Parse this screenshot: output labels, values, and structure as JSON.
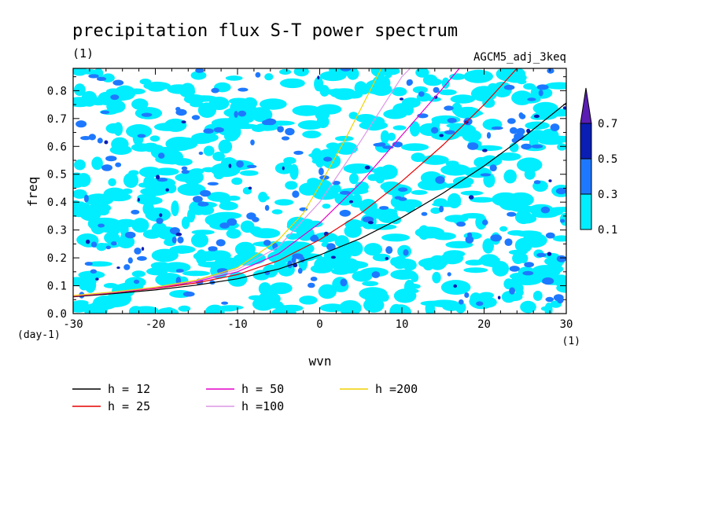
{
  "chart_data": {
    "type": "heatmap",
    "title": "precipitation flux S-T power spectrum",
    "subtitle": "(1)",
    "run_label": "AGCM5_adj_3keq",
    "xlabel": "wvn",
    "ylabel": "freq",
    "x_unit": "(1)",
    "y_unit": "(day-1)",
    "xlim": [
      -30,
      30
    ],
    "ylim": [
      0,
      0.88
    ],
    "x_ticks": [
      "-30",
      "-20",
      "-10",
      "0",
      "10",
      "20",
      "30"
    ],
    "y_ticks": [
      "0.0",
      "0.1",
      "0.2",
      "0.3",
      "0.4",
      "0.5",
      "0.6",
      "0.7",
      "0.8"
    ],
    "colorbar": {
      "levels": [
        0.1,
        0.3,
        0.5,
        0.7
      ],
      "level_labels": [
        "0.1",
        "0.3",
        "0.5",
        "0.7"
      ],
      "colors": [
        "#00eeff",
        "#1e78ff",
        "#0a1eb4",
        "#5a1eb4"
      ],
      "extend": "max"
    },
    "dispersion_curves": [
      {
        "name": "h = 12",
        "h": 12,
        "color": "#000000",
        "x": [
          -30,
          -25,
          -20,
          -15,
          -10,
          -5,
          0,
          5,
          10,
          15,
          20,
          25,
          30
        ],
        "y": [
          0.06,
          0.072,
          0.085,
          0.102,
          0.125,
          0.16,
          0.21,
          0.27,
          0.345,
          0.432,
          0.53,
          0.638,
          0.756
        ]
      },
      {
        "name": "h = 25",
        "h": 25,
        "color": "#e60000",
        "x": [
          -30,
          -25,
          -20,
          -15,
          -10,
          -5,
          0,
          5,
          10,
          15,
          20,
          24
        ],
        "y": [
          0.062,
          0.075,
          0.09,
          0.11,
          0.14,
          0.19,
          0.265,
          0.36,
          0.475,
          0.605,
          0.75,
          0.88
        ]
      },
      {
        "name": "h = 50",
        "h": 50,
        "color": "#e600c8",
        "x": [
          -30,
          -25,
          -20,
          -15,
          -10,
          -5,
          0,
          5,
          10,
          15,
          17
        ],
        "y": [
          0.063,
          0.076,
          0.092,
          0.115,
          0.15,
          0.215,
          0.325,
          0.47,
          0.64,
          0.81,
          0.88
        ]
      },
      {
        "name": "h =100",
        "h": 100,
        "color": "#dc96e6",
        "x": [
          -30,
          -25,
          -20,
          -15,
          -10,
          -5,
          0,
          5,
          10,
          11
        ],
        "y": [
          0.064,
          0.077,
          0.094,
          0.118,
          0.158,
          0.24,
          0.4,
          0.62,
          0.85,
          0.88
        ]
      },
      {
        "name": "h =200",
        "h": 200,
        "color": "#f0d200",
        "x": [
          -30,
          -25,
          -20,
          -15,
          -10,
          -5,
          -2,
          0,
          3,
          5,
          7.5
        ],
        "y": [
          0.065,
          0.078,
          0.095,
          0.12,
          0.165,
          0.265,
          0.36,
          0.46,
          0.62,
          0.735,
          0.88
        ]
      }
    ],
    "legend_placement": "bottom-left"
  }
}
